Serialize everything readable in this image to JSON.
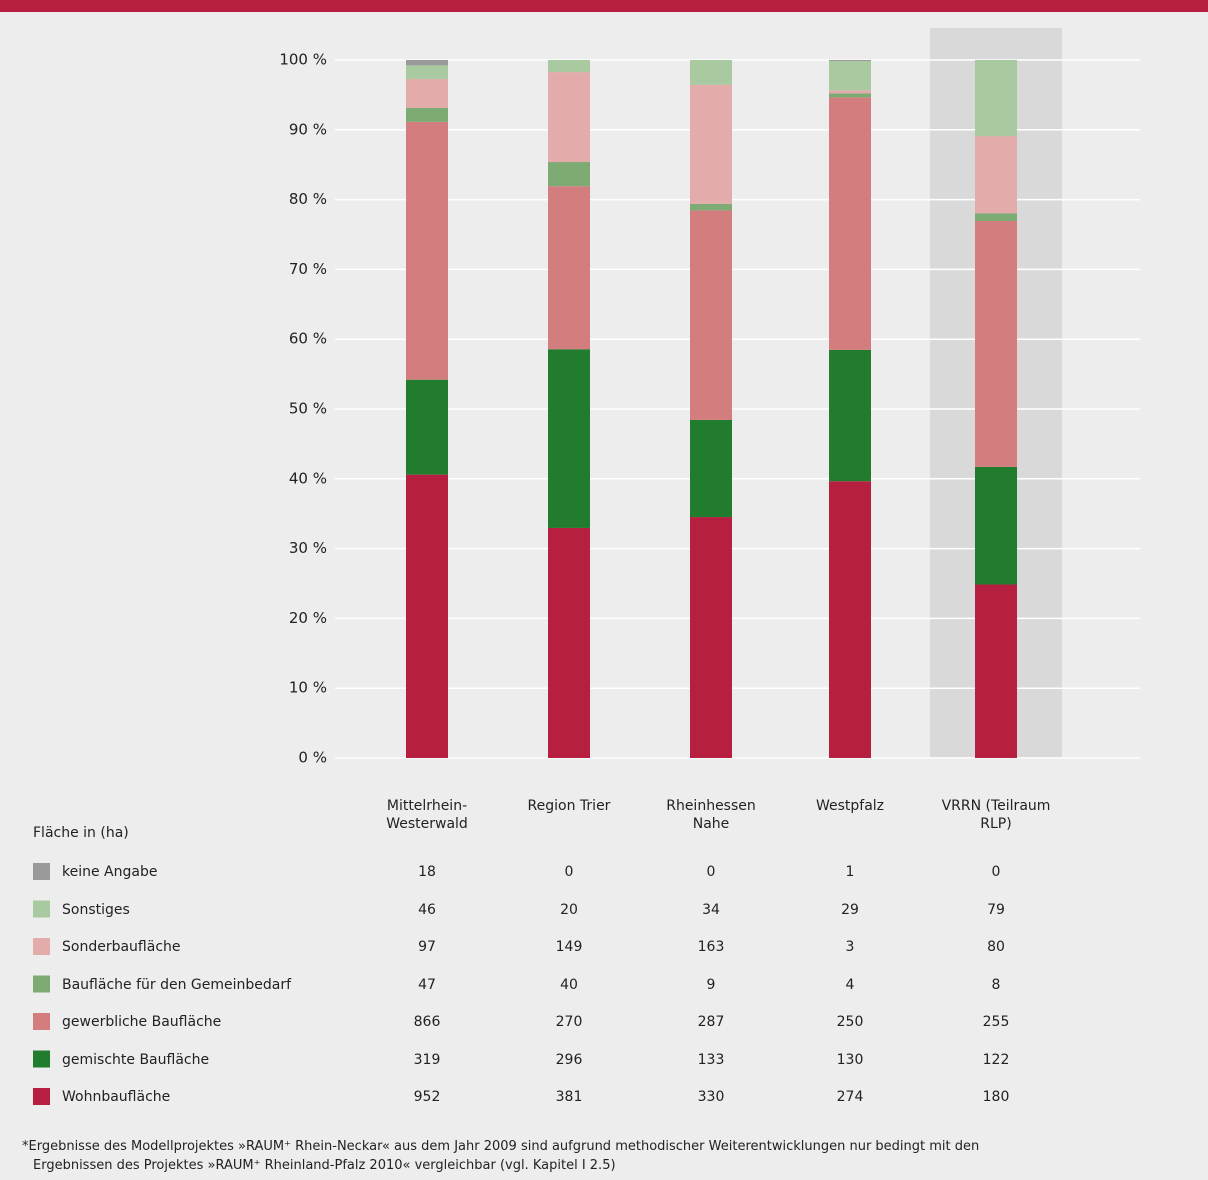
{
  "chart_data": {
    "type": "stacked_bar_100",
    "categories": [
      "Mittelrhein-Westerwald",
      "Region Trier",
      "Rheinhessen Nahe",
      "Westpfalz",
      "VRRN (Teilraum RLP)"
    ],
    "highlight_category": 4,
    "series": [
      {
        "name": "Wohnbaufläche",
        "color": "#b71f40",
        "values": [
          952,
          381,
          330,
          274,
          180
        ]
      },
      {
        "name": "gemischte Baufläche",
        "color": "#227c2e",
        "values": [
          319,
          296,
          133,
          130,
          122
        ]
      },
      {
        "name": "gewerbliche Baufläche",
        "color": "#d37d7f",
        "values": [
          866,
          270,
          287,
          250,
          255
        ]
      },
      {
        "name": "Baufläche für den Gemeinbedarf",
        "color": "#7eaa74",
        "values": [
          47,
          40,
          9,
          4,
          8
        ]
      },
      {
        "name": "Sonderbaufläche",
        "color": "#e3abaa",
        "values": [
          97,
          149,
          163,
          3,
          80
        ]
      },
      {
        "name": "Sonstiges",
        "color": "#a9c9a0",
        "values": [
          46,
          20,
          34,
          29,
          79
        ]
      },
      {
        "name": "keine Angabe",
        "color": "#9a9a9a",
        "values": [
          18,
          0,
          0,
          1,
          0
        ]
      }
    ],
    "ylim": [
      0,
      100
    ],
    "yticks": [
      {
        "value": 0,
        "label": "0 %"
      },
      {
        "value": 10,
        "label": "10 %"
      },
      {
        "value": 20,
        "label": "20 %"
      },
      {
        "value": 30,
        "label": "30 %"
      },
      {
        "value": 40,
        "label": "40 %"
      },
      {
        "value": 50,
        "label": "50 %"
      },
      {
        "value": 60,
        "label": "60 %"
      },
      {
        "value": 70,
        "label": "70 %"
      },
      {
        "value": 80,
        "label": "80 %"
      },
      {
        "value": 90,
        "label": "90 %"
      },
      {
        "value": 100,
        "label": "100 %"
      }
    ],
    "grid": true,
    "table_label": "Fläche in (ha)",
    "footnote": [
      "*Ergebnisse des Modellprojektes »RAUM⁺ Rhein-Neckar« aus dem Jahr 2009 sind aufgrund methodischer Weiterentwicklungen nur bedingt mit den",
      "Ergebnissen des Projektes »RAUM⁺ Rheinland-Pfalz 2010« vergleichbar (vgl. Kapitel I 2.5)"
    ]
  }
}
